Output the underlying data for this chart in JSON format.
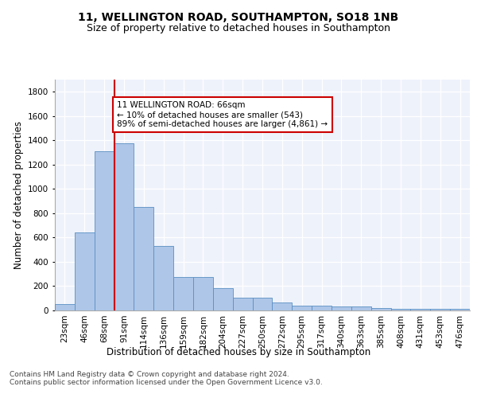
{
  "title1": "11, WELLINGTON ROAD, SOUTHAMPTON, SO18 1NB",
  "title2": "Size of property relative to detached houses in Southampton",
  "xlabel": "Distribution of detached houses by size in Southampton",
  "ylabel": "Number of detached properties",
  "categories": [
    "23sqm",
    "46sqm",
    "68sqm",
    "91sqm",
    "114sqm",
    "136sqm",
    "159sqm",
    "182sqm",
    "204sqm",
    "227sqm",
    "250sqm",
    "272sqm",
    "295sqm",
    "317sqm",
    "340sqm",
    "363sqm",
    "385sqm",
    "408sqm",
    "431sqm",
    "453sqm",
    "476sqm"
  ],
  "values": [
    50,
    640,
    1310,
    1375,
    850,
    530,
    275,
    275,
    185,
    105,
    105,
    65,
    40,
    40,
    30,
    30,
    20,
    10,
    10,
    10,
    15
  ],
  "bar_color": "#aec6e8",
  "bar_edge_color": "#5a8fc2",
  "vline_x": 2.5,
  "vline_color": "#cc0000",
  "annotation_text": "11 WELLINGTON ROAD: 66sqm\n← 10% of detached houses are smaller (543)\n89% of semi-detached houses are larger (4,861) →",
  "annotation_box_color": "#ffffff",
  "annotation_box_edge_color": "#cc0000",
  "ylim": [
    0,
    1900
  ],
  "yticks": [
    0,
    200,
    400,
    600,
    800,
    1000,
    1200,
    1400,
    1600,
    1800
  ],
  "background_color": "#eef2fb",
  "footer_text": "Contains HM Land Registry data © Crown copyright and database right 2024.\nContains public sector information licensed under the Open Government Licence v3.0.",
  "title1_fontsize": 10,
  "title2_fontsize": 9,
  "xlabel_fontsize": 8.5,
  "ylabel_fontsize": 8.5,
  "tick_fontsize": 7.5
}
